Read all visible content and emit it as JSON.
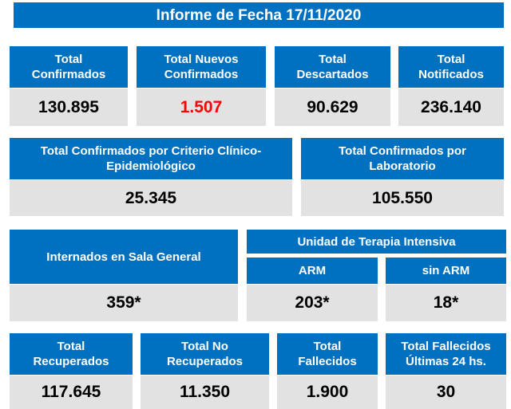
{
  "title": "Informe de Fecha 17/11/2020",
  "row1": [
    {
      "label": "Total\nConfirmados",
      "value": "130.895"
    },
    {
      "label": "Total Nuevos\nConfirmados",
      "value": "1.507"
    },
    {
      "label": "Total\nDescartados",
      "value": "90.629"
    },
    {
      "label": "Total\nNotificados",
      "value": "236.140"
    }
  ],
  "row2": [
    {
      "label": "Total Confirmados por Criterio Clínico-\nEpidemiológico",
      "value": "25.345"
    },
    {
      "label": "Total Confirmados por\nLaboratorio",
      "value": "105.550"
    }
  ],
  "sala_general": {
    "label": "Internados en Sala General",
    "value": "359*"
  },
  "uti": {
    "label": "Unidad de Terapia Intensiva",
    "arm": {
      "label": "ARM",
      "value": "203*"
    },
    "sin_arm": {
      "label": "sin ARM",
      "value": "18*"
    }
  },
  "row4": [
    {
      "label": "Total\nRecuperados",
      "value": "117.645"
    },
    {
      "label": "Total No\nRecuperados",
      "value": "11.350"
    },
    {
      "label": "Total\nFallecidos",
      "value": "1.900"
    },
    {
      "label": "Total Fallecidos\nÚltimas 24 hs.",
      "value": "30"
    }
  ],
  "colors": {
    "header": "#0070c0",
    "value_bg": "#e2e2e2",
    "highlight": "#ff0000"
  }
}
